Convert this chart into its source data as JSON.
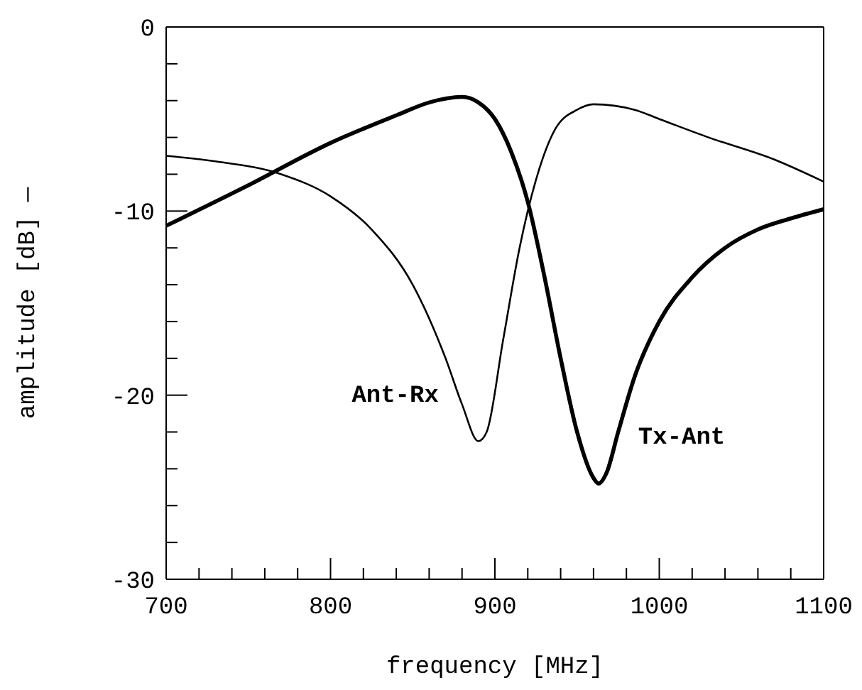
{
  "chart_data": {
    "type": "line",
    "xlabel": "frequency [MHz]",
    "ylabel": "amplitude [dB] —",
    "xlim": [
      700,
      1100
    ],
    "ylim": [
      -30,
      0
    ],
    "xticks": [
      700,
      {
        "value": 720,
        "label": null
      },
      {
        "value": 740,
        "label": null
      },
      {
        "value": 760,
        "label": null
      },
      {
        "value": 780,
        "label": null
      },
      800,
      {
        "value": 820,
        "label": null
      },
      {
        "value": 840,
        "label": null
      },
      {
        "value": 860,
        "label": null
      },
      {
        "value": 880,
        "label": null
      },
      900,
      {
        "value": 920,
        "label": null
      },
      {
        "value": 940,
        "label": null
      },
      {
        "value": 960,
        "label": null
      },
      {
        "value": 980,
        "label": null
      },
      1000,
      {
        "value": 1020,
        "label": null
      },
      {
        "value": 1040,
        "label": null
      },
      {
        "value": 1060,
        "label": null
      },
      {
        "value": 1080,
        "label": null
      },
      1100
    ],
    "yticks": [
      -30,
      {
        "value": -28,
        "label": null
      },
      {
        "value": -26,
        "label": null
      },
      {
        "value": -24,
        "label": null
      },
      {
        "value": -22,
        "label": null
      },
      -20,
      {
        "value": -18,
        "label": null
      },
      {
        "value": -16,
        "label": null
      },
      {
        "value": -14,
        "label": null
      },
      {
        "value": -12,
        "label": null
      },
      -10,
      {
        "value": -8,
        "label": null
      },
      {
        "value": -6,
        "label": null
      },
      {
        "value": -4,
        "label": null
      },
      {
        "value": -2,
        "label": null
      },
      0
    ],
    "marker": "none",
    "line_style": "solid",
    "series": [
      {
        "name": "Ant-Rx",
        "color": "#000000",
        "x": [
          700,
          730,
          770,
          800,
          825,
          850,
          870,
          880,
          890,
          895,
          905,
          915,
          925,
          937,
          950,
          960,
          985,
          1000,
          1030,
          1070,
          1100
        ],
        "values": [
          -7,
          -7.3,
          -8,
          -9.2,
          -11,
          -14,
          -18,
          -20.5,
          -22.5,
          -22,
          -17,
          -12,
          -8.3,
          -5.5,
          -4.5,
          -4.2,
          -4.5,
          -5,
          -6,
          -7.2,
          -8.4
        ]
      },
      {
        "name": "Tx-Ant",
        "color": "#000000",
        "x": [
          700,
          750,
          800,
          840,
          860,
          880,
          890,
          900,
          910,
          920,
          930,
          940,
          950,
          960,
          963,
          968,
          975,
          985,
          1000,
          1020,
          1040,
          1060,
          1080,
          1100
        ],
        "values": [
          -10.8,
          -8.6,
          -6.3,
          -4.8,
          -4.1,
          -3.8,
          -4.1,
          -5,
          -6.8,
          -9.5,
          -13.5,
          -18,
          -22,
          -24.5,
          -24.8,
          -24.2,
          -22,
          -19,
          -16,
          -13.6,
          -12,
          -11,
          -10.4,
          -9.9
        ]
      }
    ]
  }
}
